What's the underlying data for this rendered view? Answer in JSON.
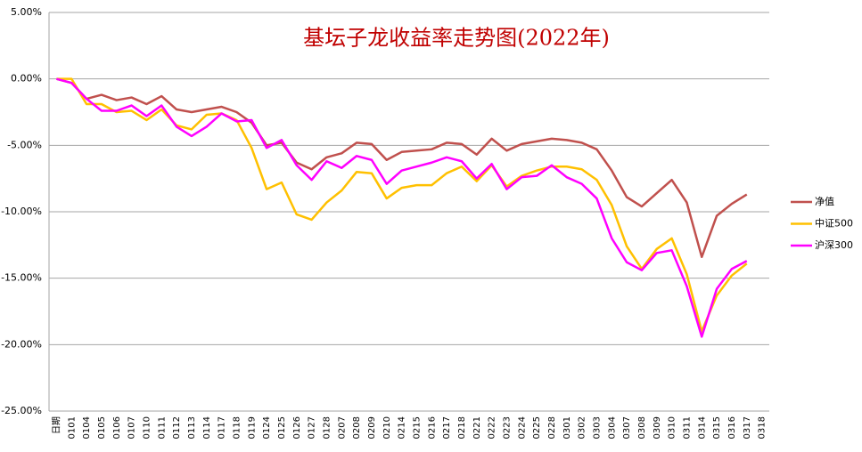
{
  "chart_data": {
    "type": "line",
    "title": "基坛子龙收益率走势图(2022年)",
    "categories": [
      "日期",
      "0101",
      "0104",
      "0105",
      "0106",
      "0107",
      "0110",
      "0111",
      "0112",
      "0113",
      "0114",
      "0117",
      "0118",
      "0119",
      "0124",
      "0125",
      "0126",
      "0127",
      "0128",
      "0207",
      "0208",
      "0209",
      "0210",
      "0214",
      "0215",
      "0216",
      "0217",
      "0218",
      "0221",
      "0222",
      "0223",
      "0224",
      "0225",
      "0228",
      "0301",
      "0302",
      "0303",
      "0304",
      "0307",
      "0308",
      "0309",
      "0310",
      "0311",
      "0314",
      "0315",
      "0316",
      "0317",
      "0318"
    ],
    "series": [
      {
        "name": "净值",
        "color": "#c0504d",
        "values": [
          0,
          -0.3,
          -1.5,
          -1.2,
          -1.6,
          -1.4,
          -1.9,
          -1.3,
          -2.3,
          -2.5,
          -2.3,
          -2.1,
          -2.5,
          -3.3,
          -5.0,
          -4.8,
          -6.3,
          -6.8,
          -5.9,
          -5.6,
          -4.8,
          -4.9,
          -6.1,
          -5.5,
          -5.4,
          -5.3,
          -4.8,
          -4.9,
          -5.7,
          -4.5,
          -5.4,
          -4.9,
          -4.7,
          -4.5,
          -4.6,
          -4.8,
          -5.3,
          -6.9,
          -8.9,
          -9.6,
          -8.6,
          -7.6,
          -9.3,
          -13.4,
          -10.3,
          -9.4,
          -8.7,
          null
        ]
      },
      {
        "name": "中证500",
        "color": "#ffc000",
        "values": [
          0,
          0,
          -1.9,
          -1.9,
          -2.5,
          -2.4,
          -3.1,
          -2.3,
          -3.5,
          -3.8,
          -2.7,
          -2.6,
          -3.1,
          -5.2,
          -8.3,
          -7.8,
          -10.2,
          -10.6,
          -9.3,
          -8.4,
          -7.0,
          -7.1,
          -9.0,
          -8.2,
          -8.0,
          -8.0,
          -7.1,
          -6.6,
          -7.7,
          -6.5,
          -8.1,
          -7.3,
          -6.9,
          -6.6,
          -6.6,
          -6.8,
          -7.6,
          -9.5,
          -12.6,
          -14.3,
          -12.8,
          -12.0,
          -14.7,
          -19.0,
          -16.3,
          -14.8,
          -13.9,
          null
        ]
      },
      {
        "name": "沪深300",
        "color": "#ff00ff",
        "values": [
          0,
          -0.3,
          -1.5,
          -2.4,
          -2.4,
          -2.0,
          -2.8,
          -2.0,
          -3.6,
          -4.3,
          -3.6,
          -2.6,
          -3.2,
          -3.1,
          -5.2,
          -4.6,
          -6.5,
          -7.6,
          -6.2,
          -6.7,
          -5.8,
          -6.1,
          -7.9,
          -6.9,
          -6.6,
          -6.3,
          -5.9,
          -6.2,
          -7.5,
          -6.4,
          -8.3,
          -7.4,
          -7.3,
          -6.5,
          -7.4,
          -7.9,
          -9.0,
          -12.0,
          -13.8,
          -14.4,
          -13.1,
          -12.9,
          -15.6,
          -19.4,
          -15.8,
          -14.3,
          -13.7,
          null
        ]
      }
    ],
    "ylim": [
      -25,
      5
    ],
    "yticks": [
      {
        "value": -25,
        "label": "-25.00%"
      },
      {
        "value": -20,
        "label": "-20.00%"
      },
      {
        "value": -15,
        "label": "-15.00%"
      },
      {
        "value": -10,
        "label": "-10.00%"
      },
      {
        "value": -5,
        "label": "-5.00%"
      },
      {
        "value": 0,
        "label": "0.00%"
      },
      {
        "value": 5,
        "label": "5.00%"
      }
    ],
    "grid": true,
    "legend": "right"
  }
}
